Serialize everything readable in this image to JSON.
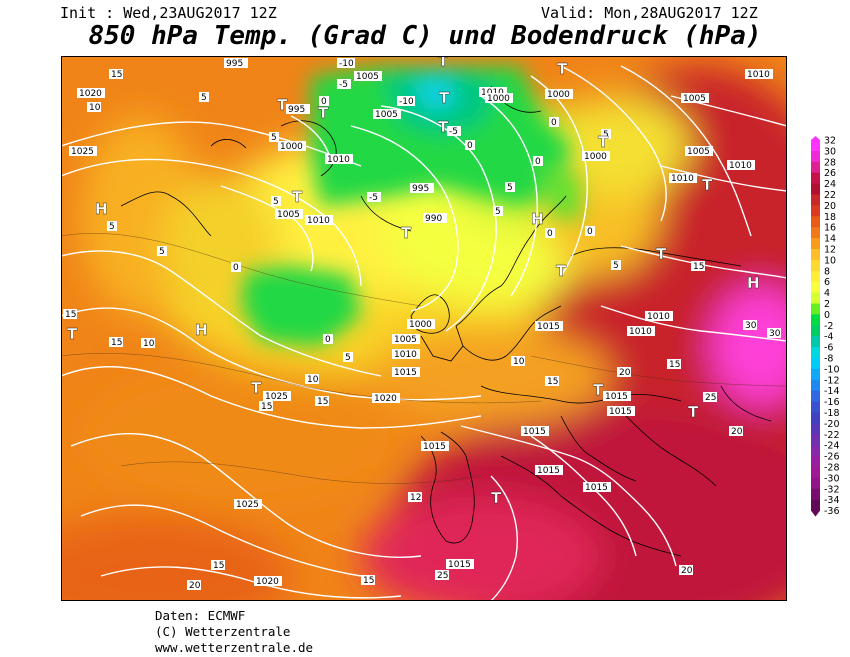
{
  "header": {
    "init": "Init : Wed,23AUG2017 12Z",
    "valid": "Valid: Mon,28AUG2017 12Z",
    "title": "850 hPa Temp. (Grad C) und Bodendruck (hPa)"
  },
  "colorbar": {
    "ticks": [
      "32",
      "30",
      "28",
      "26",
      "24",
      "22",
      "20",
      "18",
      "16",
      "14",
      "12",
      "10",
      "8",
      "6",
      "4",
      "2",
      "0",
      "-2",
      "-4",
      "-6",
      "-8",
      "-10",
      "-12",
      "-14",
      "-16",
      "-18",
      "-20",
      "-22",
      "-24",
      "-26",
      "-28",
      "-30",
      "-32",
      "-34",
      "-36"
    ],
    "colors": [
      "#ff33ff",
      "#f02ad8",
      "#e0208f",
      "#c8104a",
      "#b01030",
      "#c82828",
      "#dc3a20",
      "#e85a18",
      "#f07818",
      "#f89a1c",
      "#ffbe28",
      "#ffd830",
      "#ffee38",
      "#f8ff40",
      "#d4ff30",
      "#66ee22",
      "#00dd44",
      "#00cc66",
      "#00c8a8",
      "#00d8e0",
      "#00ccf8",
      "#10a8f8",
      "#2088f0",
      "#3068e0",
      "#3a50d0",
      "#4040c0",
      "#5838b8",
      "#7030b0",
      "#8828a8",
      "#9820a0",
      "#a01898",
      "#901488",
      "#780f70",
      "#600a58"
    ]
  },
  "map": {
    "pressure_labels": [
      {
        "text": "995"
      },
      {
        "text": "1005"
      },
      {
        "text": "1010"
      },
      {
        "text": "1020"
      },
      {
        "text": "1000"
      },
      {
        "text": "995"
      },
      {
        "text": "1025"
      },
      {
        "text": "1000"
      },
      {
        "text": "1005"
      },
      {
        "text": "1010"
      },
      {
        "text": "1005"
      },
      {
        "text": "1000"
      },
      {
        "text": "1010"
      },
      {
        "text": "1005"
      },
      {
        "text": "1010"
      },
      {
        "text": "995"
      },
      {
        "text": "1000"
      },
      {
        "text": "990"
      },
      {
        "text": "1010"
      },
      {
        "text": "1005"
      },
      {
        "text": "1010"
      },
      {
        "text": "1000"
      },
      {
        "text": "1005"
      },
      {
        "text": "1010"
      },
      {
        "text": "1015"
      },
      {
        "text": "1015"
      },
      {
        "text": "1010"
      },
      {
        "text": "1010"
      },
      {
        "text": "1025"
      },
      {
        "text": "1020"
      },
      {
        "text": "1015"
      },
      {
        "text": "1015"
      },
      {
        "text": "1015"
      },
      {
        "text": "1015"
      },
      {
        "text": "1015"
      },
      {
        "text": "1025"
      },
      {
        "text": "1020"
      },
      {
        "text": "1015"
      },
      {
        "text": "1010"
      },
      {
        "text": "1015"
      }
    ],
    "temp_labels": [
      {
        "text": "15"
      },
      {
        "text": "10"
      },
      {
        "text": "5"
      },
      {
        "text": "0"
      },
      {
        "text": "-5"
      },
      {
        "text": "-10"
      },
      {
        "text": "-10"
      },
      {
        "text": "-5"
      },
      {
        "text": "0"
      },
      {
        "text": "5"
      },
      {
        "text": "5"
      },
      {
        "text": "0"
      },
      {
        "text": "5"
      },
      {
        "text": "0"
      },
      {
        "text": "-5"
      },
      {
        "text": "0"
      },
      {
        "text": "5"
      },
      {
        "text": "0"
      },
      {
        "text": "5"
      },
      {
        "text": "5"
      },
      {
        "text": "0"
      },
      {
        "text": "0"
      },
      {
        "text": "5"
      },
      {
        "text": "-5"
      },
      {
        "text": "0"
      },
      {
        "text": "5"
      },
      {
        "text": "15"
      },
      {
        "text": "10"
      },
      {
        "text": "10"
      },
      {
        "text": "15"
      },
      {
        "text": "15"
      },
      {
        "text": "10"
      },
      {
        "text": "15"
      },
      {
        "text": "15"
      },
      {
        "text": "15"
      },
      {
        "text": "20"
      },
      {
        "text": "15"
      },
      {
        "text": "25"
      },
      {
        "text": "20"
      },
      {
        "text": "30"
      },
      {
        "text": "30"
      },
      {
        "text": "20"
      },
      {
        "text": "12"
      },
      {
        "text": "25"
      },
      {
        "text": "15"
      },
      {
        "text": "20"
      },
      {
        "text": "15"
      },
      {
        "text": "20"
      },
      {
        "text": "5"
      },
      {
        "text": "15"
      },
      {
        "text": "5"
      }
    ],
    "high_low_markers": [
      {
        "text": "H"
      },
      {
        "text": "H"
      },
      {
        "text": "H"
      },
      {
        "text": "H"
      },
      {
        "text": "T"
      },
      {
        "text": "T"
      },
      {
        "text": "T"
      },
      {
        "text": "T"
      },
      {
        "text": "T"
      },
      {
        "text": "T"
      },
      {
        "text": "T"
      },
      {
        "text": "T"
      },
      {
        "text": "T"
      },
      {
        "text": "T"
      },
      {
        "text": "T"
      },
      {
        "text": "T"
      },
      {
        "text": "T"
      },
      {
        "text": "T"
      },
      {
        "text": "T"
      },
      {
        "text": "T"
      },
      {
        "text": "T"
      },
      {
        "text": "T"
      },
      {
        "text": "T"
      },
      {
        "text": "H"
      }
    ]
  },
  "footer": {
    "line1": "Daten: ECMWF",
    "line2": "(C) Wetterzentrale",
    "line3": "www.wetterzentrale.de"
  }
}
